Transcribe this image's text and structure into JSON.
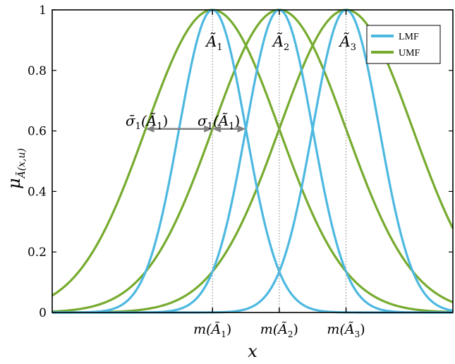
{
  "chart_data": {
    "type": "line",
    "xlabel": "x",
    "ylabel_main": "μ",
    "ylabel_sub": "Ã(x,u)",
    "xlim": [
      -4.8,
      7.2
    ],
    "ylim": [
      0,
      1
    ],
    "grid": false,
    "legend_position": "top-right",
    "yticks": [
      {
        "value": 0,
        "label": "0"
      },
      {
        "value": 0.2,
        "label": "0.2"
      },
      {
        "value": 0.4,
        "label": "0.4"
      },
      {
        "value": 0.6,
        "label": "0.6"
      },
      {
        "value": 0.8,
        "label": "0.8"
      },
      {
        "value": 1,
        "label": "1"
      }
    ],
    "xticks": [
      {
        "value": 0,
        "base": "m(Ã",
        "sub": "1",
        "close": ")"
      },
      {
        "value": 2,
        "base": "m(Ã",
        "sub": "2",
        "close": ")"
      },
      {
        "value": 4,
        "base": "m(Ã",
        "sub": "3",
        "close": ")"
      }
    ],
    "centers": [
      0,
      2,
      4
    ],
    "sigma_lmf": 1.0,
    "sigma_umf": 2.0,
    "series": [
      {
        "name": "LMF",
        "color": "#4db8e0",
        "kind": "gaussian",
        "sigma": 1.0
      },
      {
        "name": "UMF",
        "color": "#76ab2f",
        "kind": "gaussian",
        "sigma": 2.0
      }
    ],
    "peak_labels": [
      {
        "center": 0,
        "base": "Ã",
        "sub": "1"
      },
      {
        "center": 2,
        "base": "Ã",
        "sub": "2"
      },
      {
        "center": 4,
        "base": "Ã",
        "sub": "3"
      }
    ],
    "annotations": [
      {
        "id": "sigma-bar",
        "base": "σ̄",
        "sub": "1",
        "arg": "(Ã",
        "argsub": "1",
        "close": ")",
        "from": -2.0,
        "to": 0,
        "y": 0.6065
      },
      {
        "id": "sigma",
        "base": "σ",
        "sub": "1",
        "arg": "(Ã",
        "argsub": "1",
        "close": ")",
        "from": 0,
        "to": 1.0,
        "y": 0.6065
      }
    ],
    "annotation_color": "#808080"
  }
}
